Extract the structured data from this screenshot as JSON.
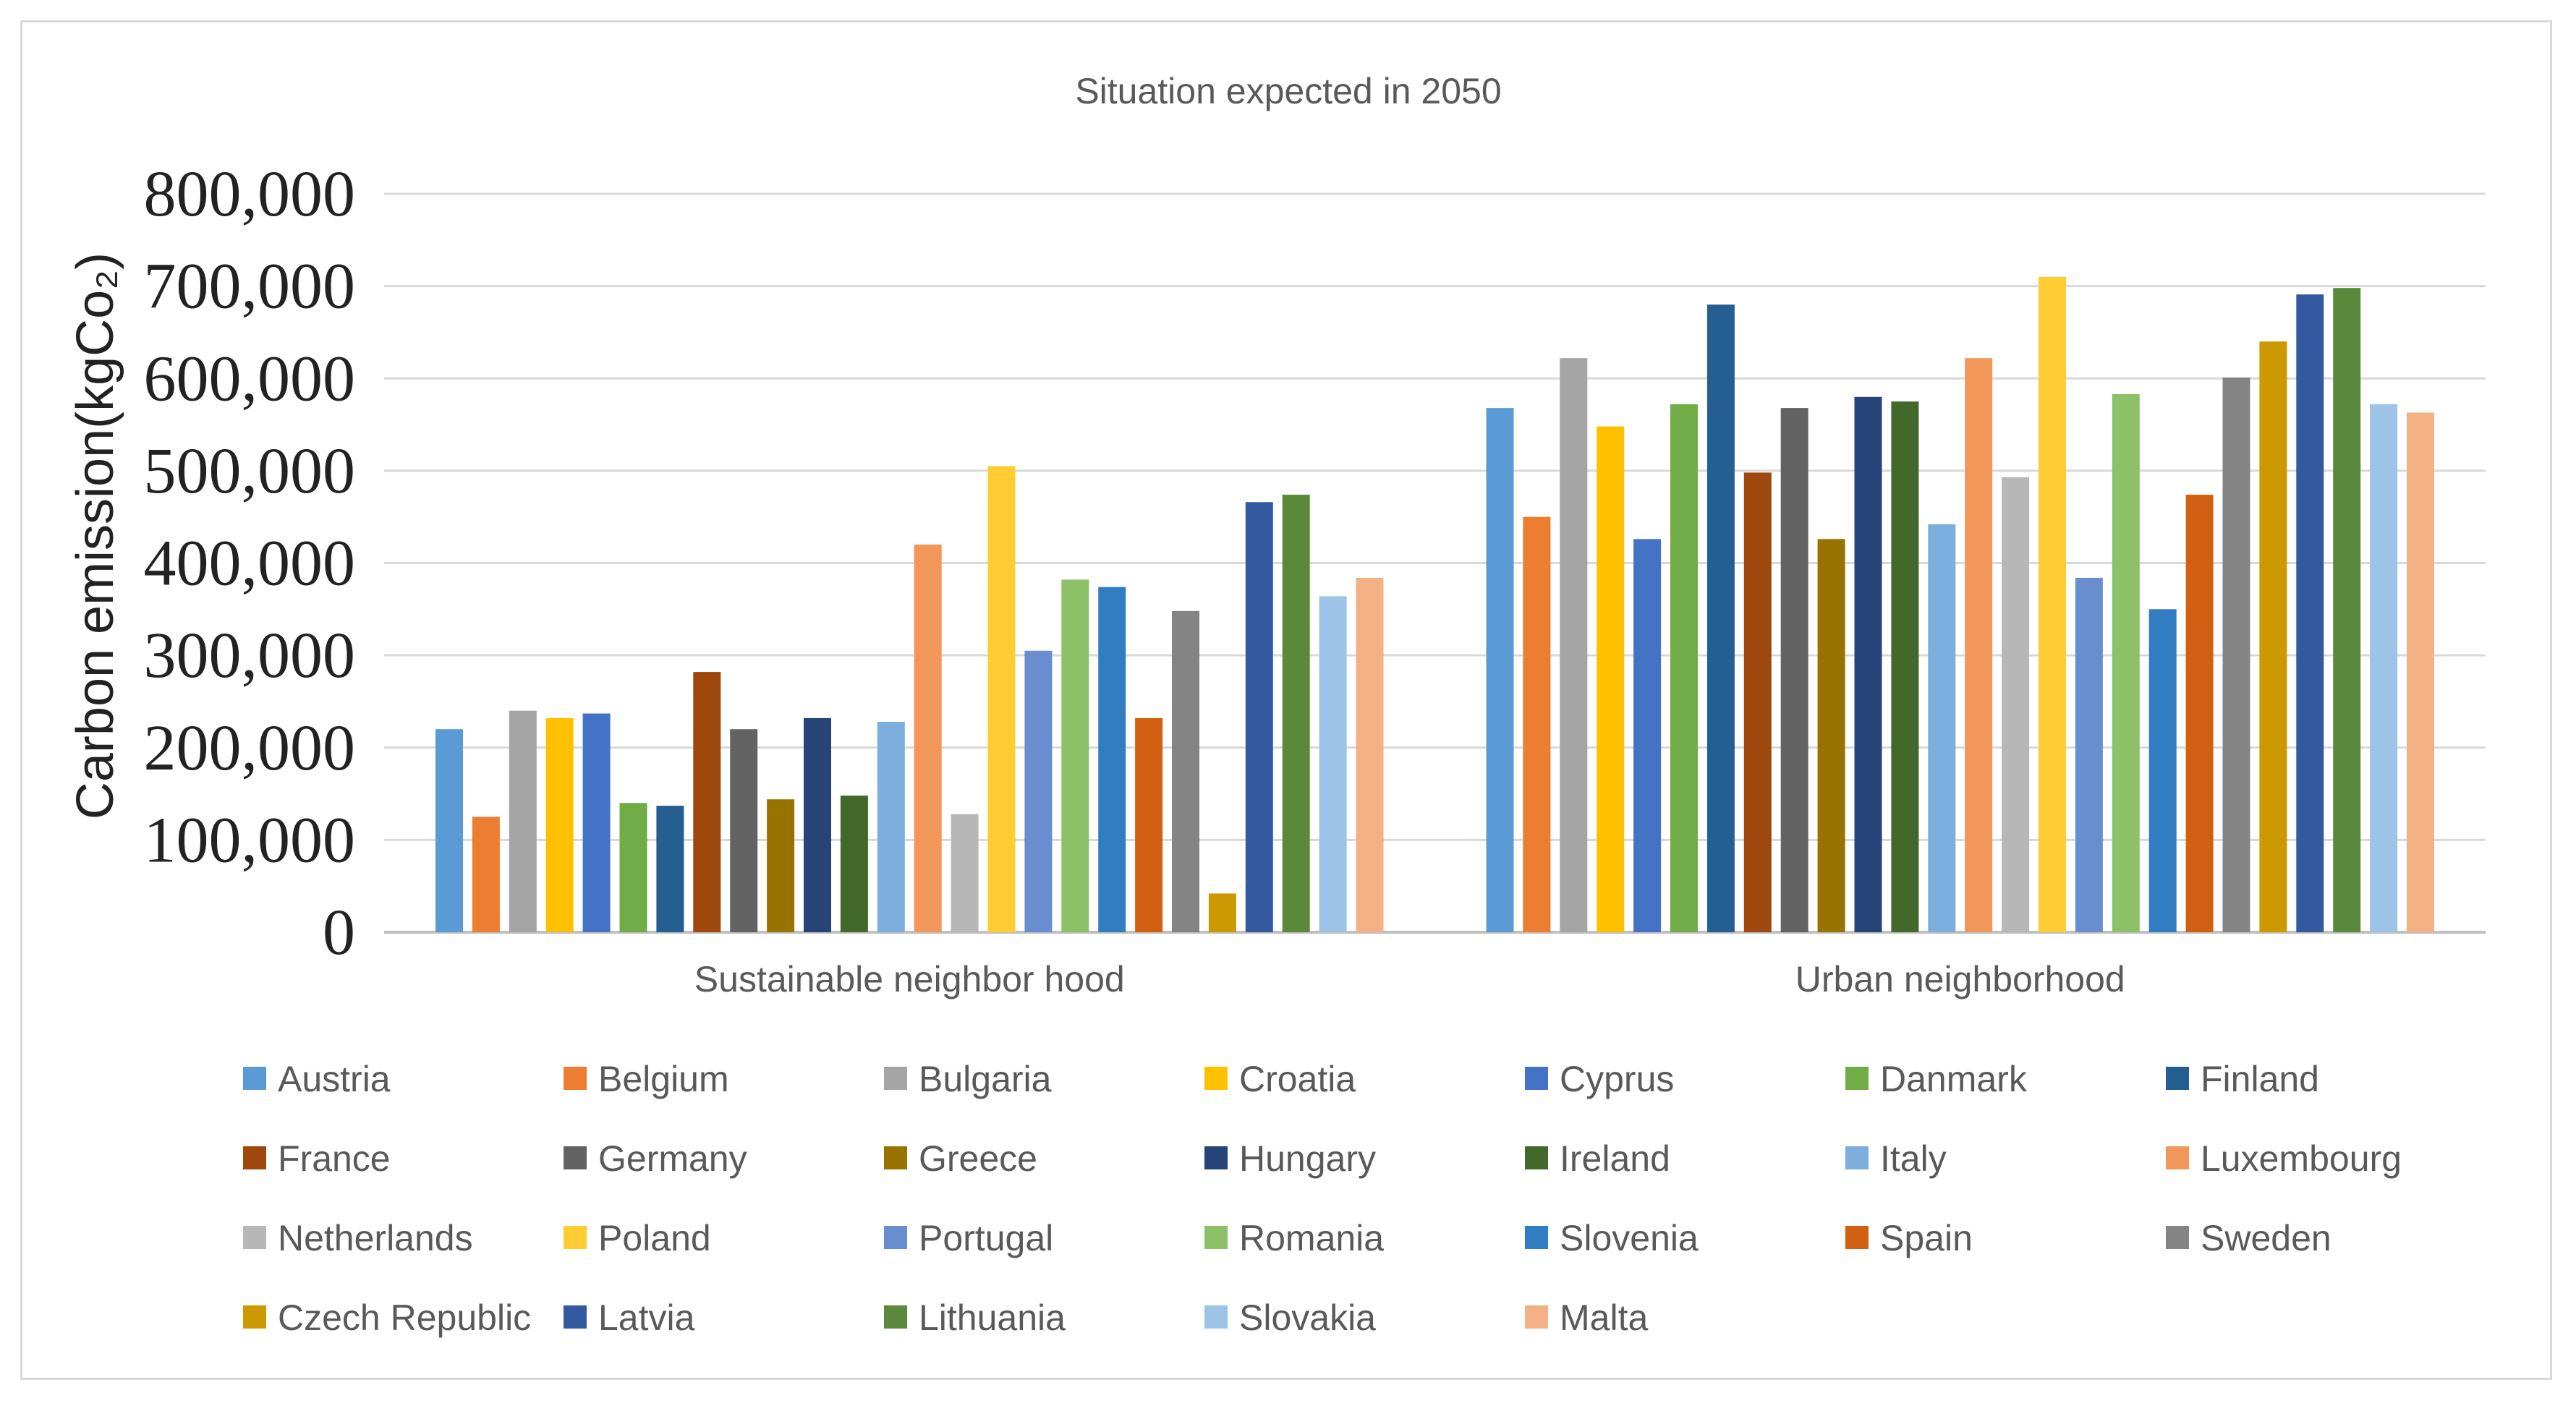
{
  "chart_data": {
    "type": "bar",
    "title": "Situation expected   in 2050",
    "ylabel": "Carbon emission(kgCo₂)",
    "xlabel": "",
    "ylim": [
      0,
      800000
    ],
    "yticks": [
      0,
      100000,
      200000,
      300000,
      400000,
      500000,
      600000,
      700000,
      800000
    ],
    "ytick_labels": [
      "0",
      "100,000",
      "200,000",
      "300,000",
      "400,000",
      "500,000",
      "600,000",
      "700,000",
      "800,000"
    ],
    "grid": true,
    "legend_position": "bottom",
    "categories": [
      "Sustainable neighbor hood",
      "Urban neighborhood"
    ],
    "series": [
      {
        "name": "Austria",
        "color": "#5b9bd5",
        "values": [
          220000,
          568000
        ]
      },
      {
        "name": "Belgium",
        "color": "#ed7d31",
        "values": [
          125000,
          450000
        ]
      },
      {
        "name": "Bulgaria",
        "color": "#a5a5a5",
        "values": [
          240000,
          622000
        ]
      },
      {
        "name": "Croatia",
        "color": "#ffc000",
        "values": [
          232000,
          548000
        ]
      },
      {
        "name": "Cyprus",
        "color": "#4472c4",
        "values": [
          237000,
          426000
        ]
      },
      {
        "name": "Danmark",
        "color": "#70ad47",
        "values": [
          140000,
          572000
        ]
      },
      {
        "name": "Finland",
        "color": "#255e91",
        "values": [
          137000,
          680000
        ]
      },
      {
        "name": "France",
        "color": "#9e480e",
        "values": [
          282000,
          498000
        ]
      },
      {
        "name": "Germany",
        "color": "#636363",
        "values": [
          220000,
          568000
        ]
      },
      {
        "name": "Greece",
        "color": "#997300",
        "values": [
          144000,
          426000
        ]
      },
      {
        "name": "Hungary",
        "color": "#264478",
        "values": [
          232000,
          580000
        ]
      },
      {
        "name": "Ireland",
        "color": "#43682b",
        "values": [
          148000,
          575000
        ]
      },
      {
        "name": "Italy",
        "color": "#7cafdd",
        "values": [
          228000,
          442000
        ]
      },
      {
        "name": "Luxembourg",
        "color": "#f1975a",
        "values": [
          420000,
          622000
        ]
      },
      {
        "name": "Netherlands",
        "color": "#b7b7b7",
        "values": [
          128000,
          493000
        ]
      },
      {
        "name": "Poland",
        "color": "#ffcd33",
        "values": [
          505000,
          710000
        ]
      },
      {
        "name": "Portugal",
        "color": "#698ed0",
        "values": [
          305000,
          384000
        ]
      },
      {
        "name": "Romania",
        "color": "#8cc168",
        "values": [
          382000,
          583000
        ]
      },
      {
        "name": "Slovenia",
        "color": "#327dc2",
        "values": [
          374000,
          350000
        ]
      },
      {
        "name": "Spain",
        "color": "#d26012",
        "values": [
          232000,
          474000
        ]
      },
      {
        "name": "Sweden",
        "color": "#848484",
        "values": [
          348000,
          601000
        ]
      },
      {
        "name": "Czech Republic",
        "color": "#cc9a00",
        "values": [
          42000,
          640000
        ]
      },
      {
        "name": "Latvia",
        "color": "#335aa1",
        "values": [
          466000,
          691000
        ]
      },
      {
        "name": "Lithuania",
        "color": "#5a8a39",
        "values": [
          474000,
          698000
        ]
      },
      {
        "name": "Slovakia",
        "color": "#9dc3e6",
        "values": [
          364000,
          572000
        ]
      },
      {
        "name": "Malta",
        "color": "#f4b183",
        "values": [
          384000,
          563000
        ]
      }
    ]
  },
  "colors": {
    "gridline": "#d9d9d9",
    "axis": "#bfbfbf",
    "frame": "#d9d9d9"
  }
}
